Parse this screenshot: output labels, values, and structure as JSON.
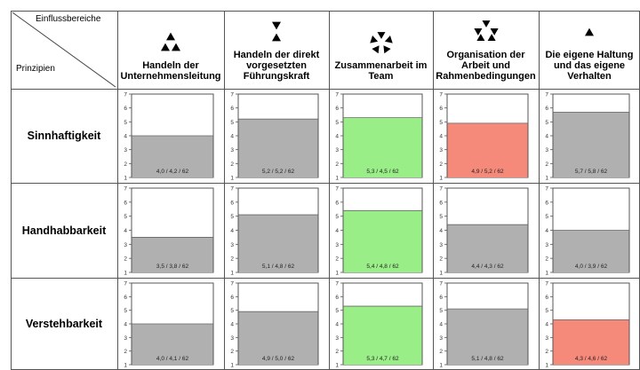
{
  "header": {
    "top_label": "Einflussbereiche",
    "bottom_label": "Prinzipien"
  },
  "columns": [
    {
      "label_lines": [
        "Handeln der",
        "Unternehmensleitung"
      ],
      "icon": "triangle-cluster-icon"
    },
    {
      "label_lines": [
        "Handeln der direkt",
        "vorgesetzten",
        "Führungskraft"
      ],
      "icon": "hourglass-triangles-icon"
    },
    {
      "label_lines": [
        "Zusammenarbeit im",
        "Team"
      ],
      "icon": "pinwheel-team-icon"
    },
    {
      "label_lines": [
        "Organisation der",
        "Arbeit und",
        "Rahmenbedingungen"
      ],
      "icon": "rotating-triangles-icon"
    },
    {
      "label_lines": [
        "Die eigene Haltung",
        "und das eigene",
        "Verhalten"
      ],
      "icon": "single-triangle-icon"
    }
  ],
  "rows": [
    {
      "label": "Sinnhaftigkeit"
    },
    {
      "label": "Handhabbarkeit"
    },
    {
      "label": "Verstehbarkeit"
    }
  ],
  "colors": {
    "neutral": "#b0b0b0",
    "positive": "#99ee88",
    "negative": "#f5897a",
    "grid": "#555555"
  },
  "chart_data": {
    "type": "bar",
    "ylim": [
      1,
      7
    ],
    "yticks": [
      1,
      2,
      3,
      4,
      5,
      6,
      7
    ],
    "cells": [
      [
        {
          "value": 4.0,
          "label": "4,0 / 4,2 / 62",
          "status": "neutral"
        },
        {
          "value": 5.2,
          "label": "5,2 / 5,2 / 62",
          "status": "neutral"
        },
        {
          "value": 5.3,
          "label": "5,3 / 4,5 / 62",
          "status": "positive"
        },
        {
          "value": 4.9,
          "label": "4,9 / 5,2 / 62",
          "status": "negative"
        },
        {
          "value": 5.7,
          "label": "5,7 / 5,8 / 62",
          "status": "neutral"
        }
      ],
      [
        {
          "value": 3.5,
          "label": "3,5 / 3,8 / 62",
          "status": "neutral"
        },
        {
          "value": 5.1,
          "label": "5,1 / 4,8 / 62",
          "status": "neutral"
        },
        {
          "value": 5.4,
          "label": "5,4 / 4,8 / 62",
          "status": "positive"
        },
        {
          "value": 4.4,
          "label": "4,4 / 4,3 / 62",
          "status": "neutral"
        },
        {
          "value": 4.0,
          "label": "4,0 / 3,9 / 62",
          "status": "neutral"
        }
      ],
      [
        {
          "value": 4.0,
          "label": "4,0 / 4,1 / 62",
          "status": "neutral"
        },
        {
          "value": 4.9,
          "label": "4,9 / 5,0 / 62",
          "status": "neutral"
        },
        {
          "value": 5.3,
          "label": "5,3 / 4,7 / 62",
          "status": "positive"
        },
        {
          "value": 5.1,
          "label": "5,1 / 4,8 / 62",
          "status": "neutral"
        },
        {
          "value": 4.3,
          "label": "4,3 / 4,6 / 62",
          "status": "negative"
        }
      ]
    ]
  }
}
